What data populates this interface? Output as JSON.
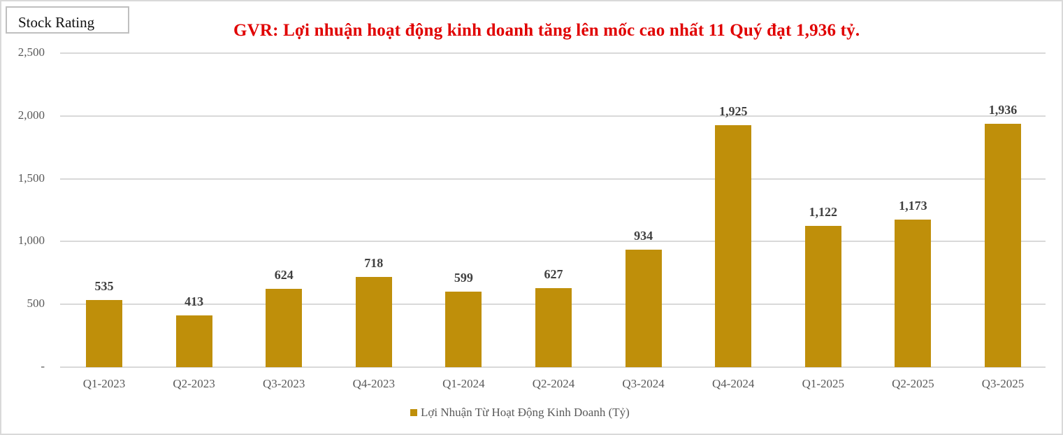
{
  "header": {
    "badge": "Stock Rating",
    "title": "GVR: Lợi nhuận hoạt động kinh doanh tăng lên mốc cao nhất 11 Quý đạt 1,936 tỷ."
  },
  "y_axis": {
    "ticks": [
      "2,500",
      "2,000",
      "1,500",
      "1,000",
      "500",
      "-"
    ]
  },
  "bars": [
    {
      "category": "Q1-2023",
      "label": "535"
    },
    {
      "category": "Q2-2023",
      "label": "413"
    },
    {
      "category": "Q3-2023",
      "label": "624"
    },
    {
      "category": "Q4-2023",
      "label": "718"
    },
    {
      "category": "Q1-2024",
      "label": "599"
    },
    {
      "category": "Q2-2024",
      "label": "627"
    },
    {
      "category": "Q3-2024",
      "label": "934"
    },
    {
      "category": "Q4-2024",
      "label": "1,925"
    },
    {
      "category": "Q1-2025",
      "label": "1,122"
    },
    {
      "category": "Q2-2025",
      "label": "1,173"
    },
    {
      "category": "Q3-2025",
      "label": "1,936"
    }
  ],
  "legend": {
    "label": "Lợi Nhuận Từ Hoạt Động Kinh Doanh (Tỷ)",
    "color": "#bf8f0a"
  },
  "colors": {
    "bar": "#bf8f0a",
    "title": "#e00000",
    "grid": "#d9d9d9"
  },
  "chart_data": {
    "type": "bar",
    "title": "GVR: Lợi nhuận hoạt động kinh doanh tăng lên mốc cao nhất 11 Quý đạt 1,936 tỷ.",
    "categories": [
      "Q1-2023",
      "Q2-2023",
      "Q3-2023",
      "Q4-2023",
      "Q1-2024",
      "Q2-2024",
      "Q3-2024",
      "Q4-2024",
      "Q1-2025",
      "Q2-2025",
      "Q3-2025"
    ],
    "series": [
      {
        "name": "Lợi Nhuận Từ Hoạt Động Kinh Doanh (Tỷ)",
        "values": [
          535,
          413,
          624,
          718,
          599,
          627,
          934,
          1925,
          1122,
          1173,
          1936
        ]
      }
    ],
    "xlabel": "",
    "ylabel": "",
    "ylim": [
      0,
      2500
    ],
    "yticks": [
      0,
      500,
      1000,
      1500,
      2000,
      2500
    ],
    "grid": true,
    "legend_position": "bottom"
  }
}
